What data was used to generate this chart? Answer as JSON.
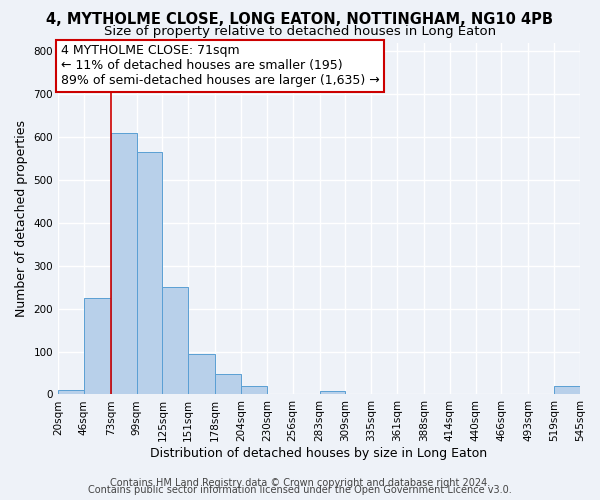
{
  "title": "4, MYTHOLME CLOSE, LONG EATON, NOTTINGHAM, NG10 4PB",
  "subtitle": "Size of property relative to detached houses in Long Eaton",
  "xlabel": "Distribution of detached houses by size in Long Eaton",
  "ylabel": "Number of detached properties",
  "bar_edges": [
    20,
    46,
    73,
    99,
    125,
    151,
    178,
    204,
    230,
    256,
    283,
    309,
    335,
    361,
    388,
    414,
    440,
    466,
    493,
    519,
    545
  ],
  "bar_heights": [
    10,
    225,
    610,
    565,
    250,
    95,
    48,
    20,
    0,
    0,
    8,
    0,
    0,
    0,
    0,
    0,
    0,
    0,
    0,
    20
  ],
  "bar_color": "#b8d0ea",
  "bar_edge_color": "#5a9fd4",
  "vline_x": 73,
  "vline_color": "#cc0000",
  "annotation_text": "4 MYTHOLME CLOSE: 71sqm\n← 11% of detached houses are smaller (195)\n89% of semi-detached houses are larger (1,635) →",
  "annotation_box_color": "#ffffff",
  "annotation_box_edge": "#cc0000",
  "ylim": [
    0,
    820
  ],
  "yticks": [
    0,
    100,
    200,
    300,
    400,
    500,
    600,
    700,
    800
  ],
  "tick_labels": [
    "20sqm",
    "46sqm",
    "73sqm",
    "99sqm",
    "125sqm",
    "151sqm",
    "178sqm",
    "204sqm",
    "230sqm",
    "256sqm",
    "283sqm",
    "309sqm",
    "335sqm",
    "361sqm",
    "388sqm",
    "414sqm",
    "440sqm",
    "466sqm",
    "493sqm",
    "519sqm",
    "545sqm"
  ],
  "footer1": "Contains HM Land Registry data © Crown copyright and database right 2024.",
  "footer2": "Contains public sector information licensed under the Open Government Licence v3.0.",
  "bg_color": "#eef2f8",
  "grid_color": "#ffffff",
  "title_fontsize": 10.5,
  "subtitle_fontsize": 9.5,
  "axis_label_fontsize": 9,
  "tick_fontsize": 7.5,
  "annotation_fontsize": 9,
  "footer_fontsize": 7
}
